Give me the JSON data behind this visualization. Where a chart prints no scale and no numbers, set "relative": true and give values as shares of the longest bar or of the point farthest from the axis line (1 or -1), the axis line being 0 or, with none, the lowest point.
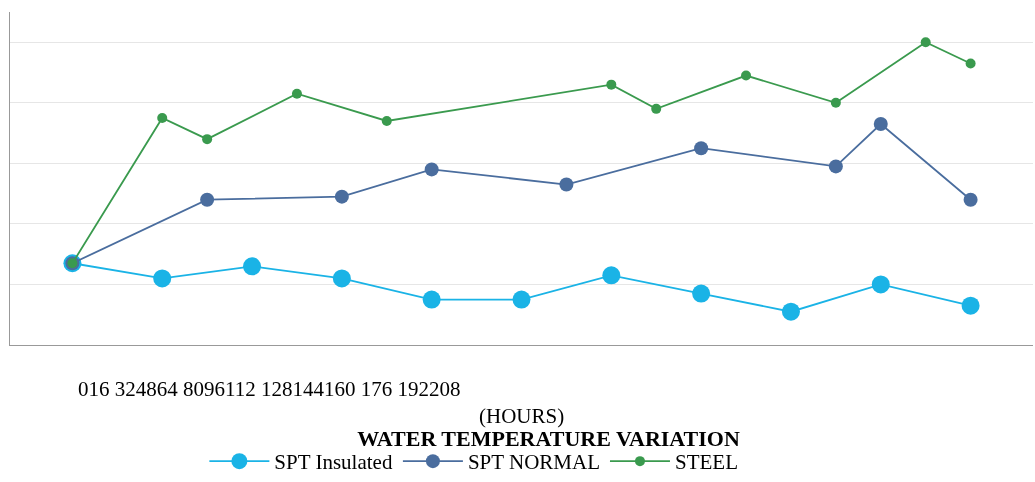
{
  "chart_data": {
    "type": "line",
    "title": "WATER TEMPERATURE VARIATION",
    "xlabel": "(HOURS)",
    "annotations": [
      "016 324864 8096112 128144160 176 192208"
    ],
    "relative": true,
    "categories": [
      null,
      null,
      null,
      null,
      null,
      null,
      null,
      null,
      null,
      null,
      null,
      null,
      null,
      null,
      null,
      null,
      null,
      null,
      null,
      null,
      null
    ],
    "series": [
      {
        "name": "SPT Insulated",
        "color": "#1ab3e6",
        "values": [
          0.27,
          null,
          0.22,
          null,
          0.26,
          null,
          0.22,
          null,
          0.15,
          null,
          0.15,
          null,
          0.23,
          null,
          0.17,
          null,
          0.11,
          null,
          0.2,
          null,
          0.13
        ]
      },
      {
        "name": "SPT NORMAL",
        "color": "#4a6d9e",
        "values": [
          0.27,
          null,
          null,
          0.48,
          null,
          null,
          0.49,
          null,
          0.58,
          null,
          null,
          0.53,
          null,
          null,
          0.65,
          null,
          null,
          0.59,
          0.73,
          null,
          0.48
        ]
      },
      {
        "name": "STEEL",
        "color": "#3a9a4e",
        "values": [
          0.27,
          null,
          0.75,
          0.68,
          null,
          0.83,
          null,
          0.74,
          null,
          null,
          null,
          null,
          0.86,
          0.78,
          null,
          0.89,
          null,
          0.8,
          null,
          1.0,
          0.93
        ]
      }
    ],
    "grid": true,
    "legend": "bottom",
    "marker": "circle",
    "line_style": "solid"
  }
}
